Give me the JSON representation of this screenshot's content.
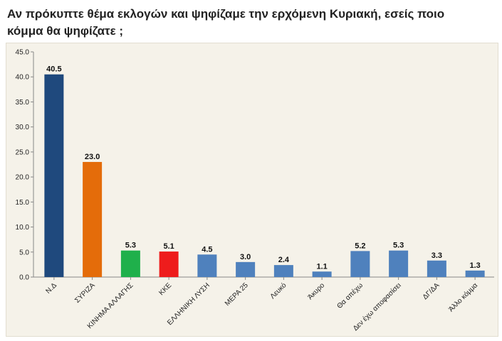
{
  "title": "Αν πρόκυπτε θέμα εκλογών και ψηφίζαμε την ερχόμενη Κυριακή, εσείς ποιο κόμμα θα ψηφίζατε ;",
  "chart_data": {
    "type": "bar",
    "title": "Αν πρόκυπτε θέμα εκλογών και ψηφίζαμε την ερχόμενη Κυριακή, εσείς ποιο κόμμα θα ψηφίζατε ;",
    "xlabel": "",
    "ylabel": "",
    "ylim": [
      0,
      45
    ],
    "yticks": [
      "0.0",
      "5.0",
      "10.0",
      "15.0",
      "20.0",
      "25.0",
      "30.0",
      "35.0",
      "40.0",
      "45.0"
    ],
    "categories": [
      "Ν.Δ",
      "ΣΥΡΙΖΑ",
      "ΚΙΝΗΜΑ ΑΛΛΑΓΗΣ",
      "ΚΚΕ",
      "ΕΛΛΗΝΙΚΗ ΛΥΣΗ",
      "ΜΕΡΑ 25",
      "Λευκό",
      "Άκυρο",
      "Θα απέχω",
      "Δεν έχω αποφασίσει",
      "ΔΓ/ΔΑ",
      "Άλλο κόμμα"
    ],
    "values": [
      40.5,
      23.0,
      5.3,
      5.1,
      4.5,
      3.0,
      2.4,
      1.1,
      5.2,
      5.3,
      3.3,
      1.3
    ],
    "value_labels": [
      "40.5",
      "23.0",
      "5.3",
      "5.1",
      "4.5",
      "3.0",
      "2.4",
      "1.1",
      "5.2",
      "5.3",
      "3.3",
      "1.3"
    ],
    "colors": [
      "#1f497d",
      "#e46c0a",
      "#1fb04b",
      "#ee1c1c",
      "#4f81bd",
      "#4f81bd",
      "#4f81bd",
      "#4f81bd",
      "#4f81bd",
      "#4f81bd",
      "#4f81bd",
      "#4f81bd"
    ],
    "grid": false,
    "legend": "none"
  }
}
